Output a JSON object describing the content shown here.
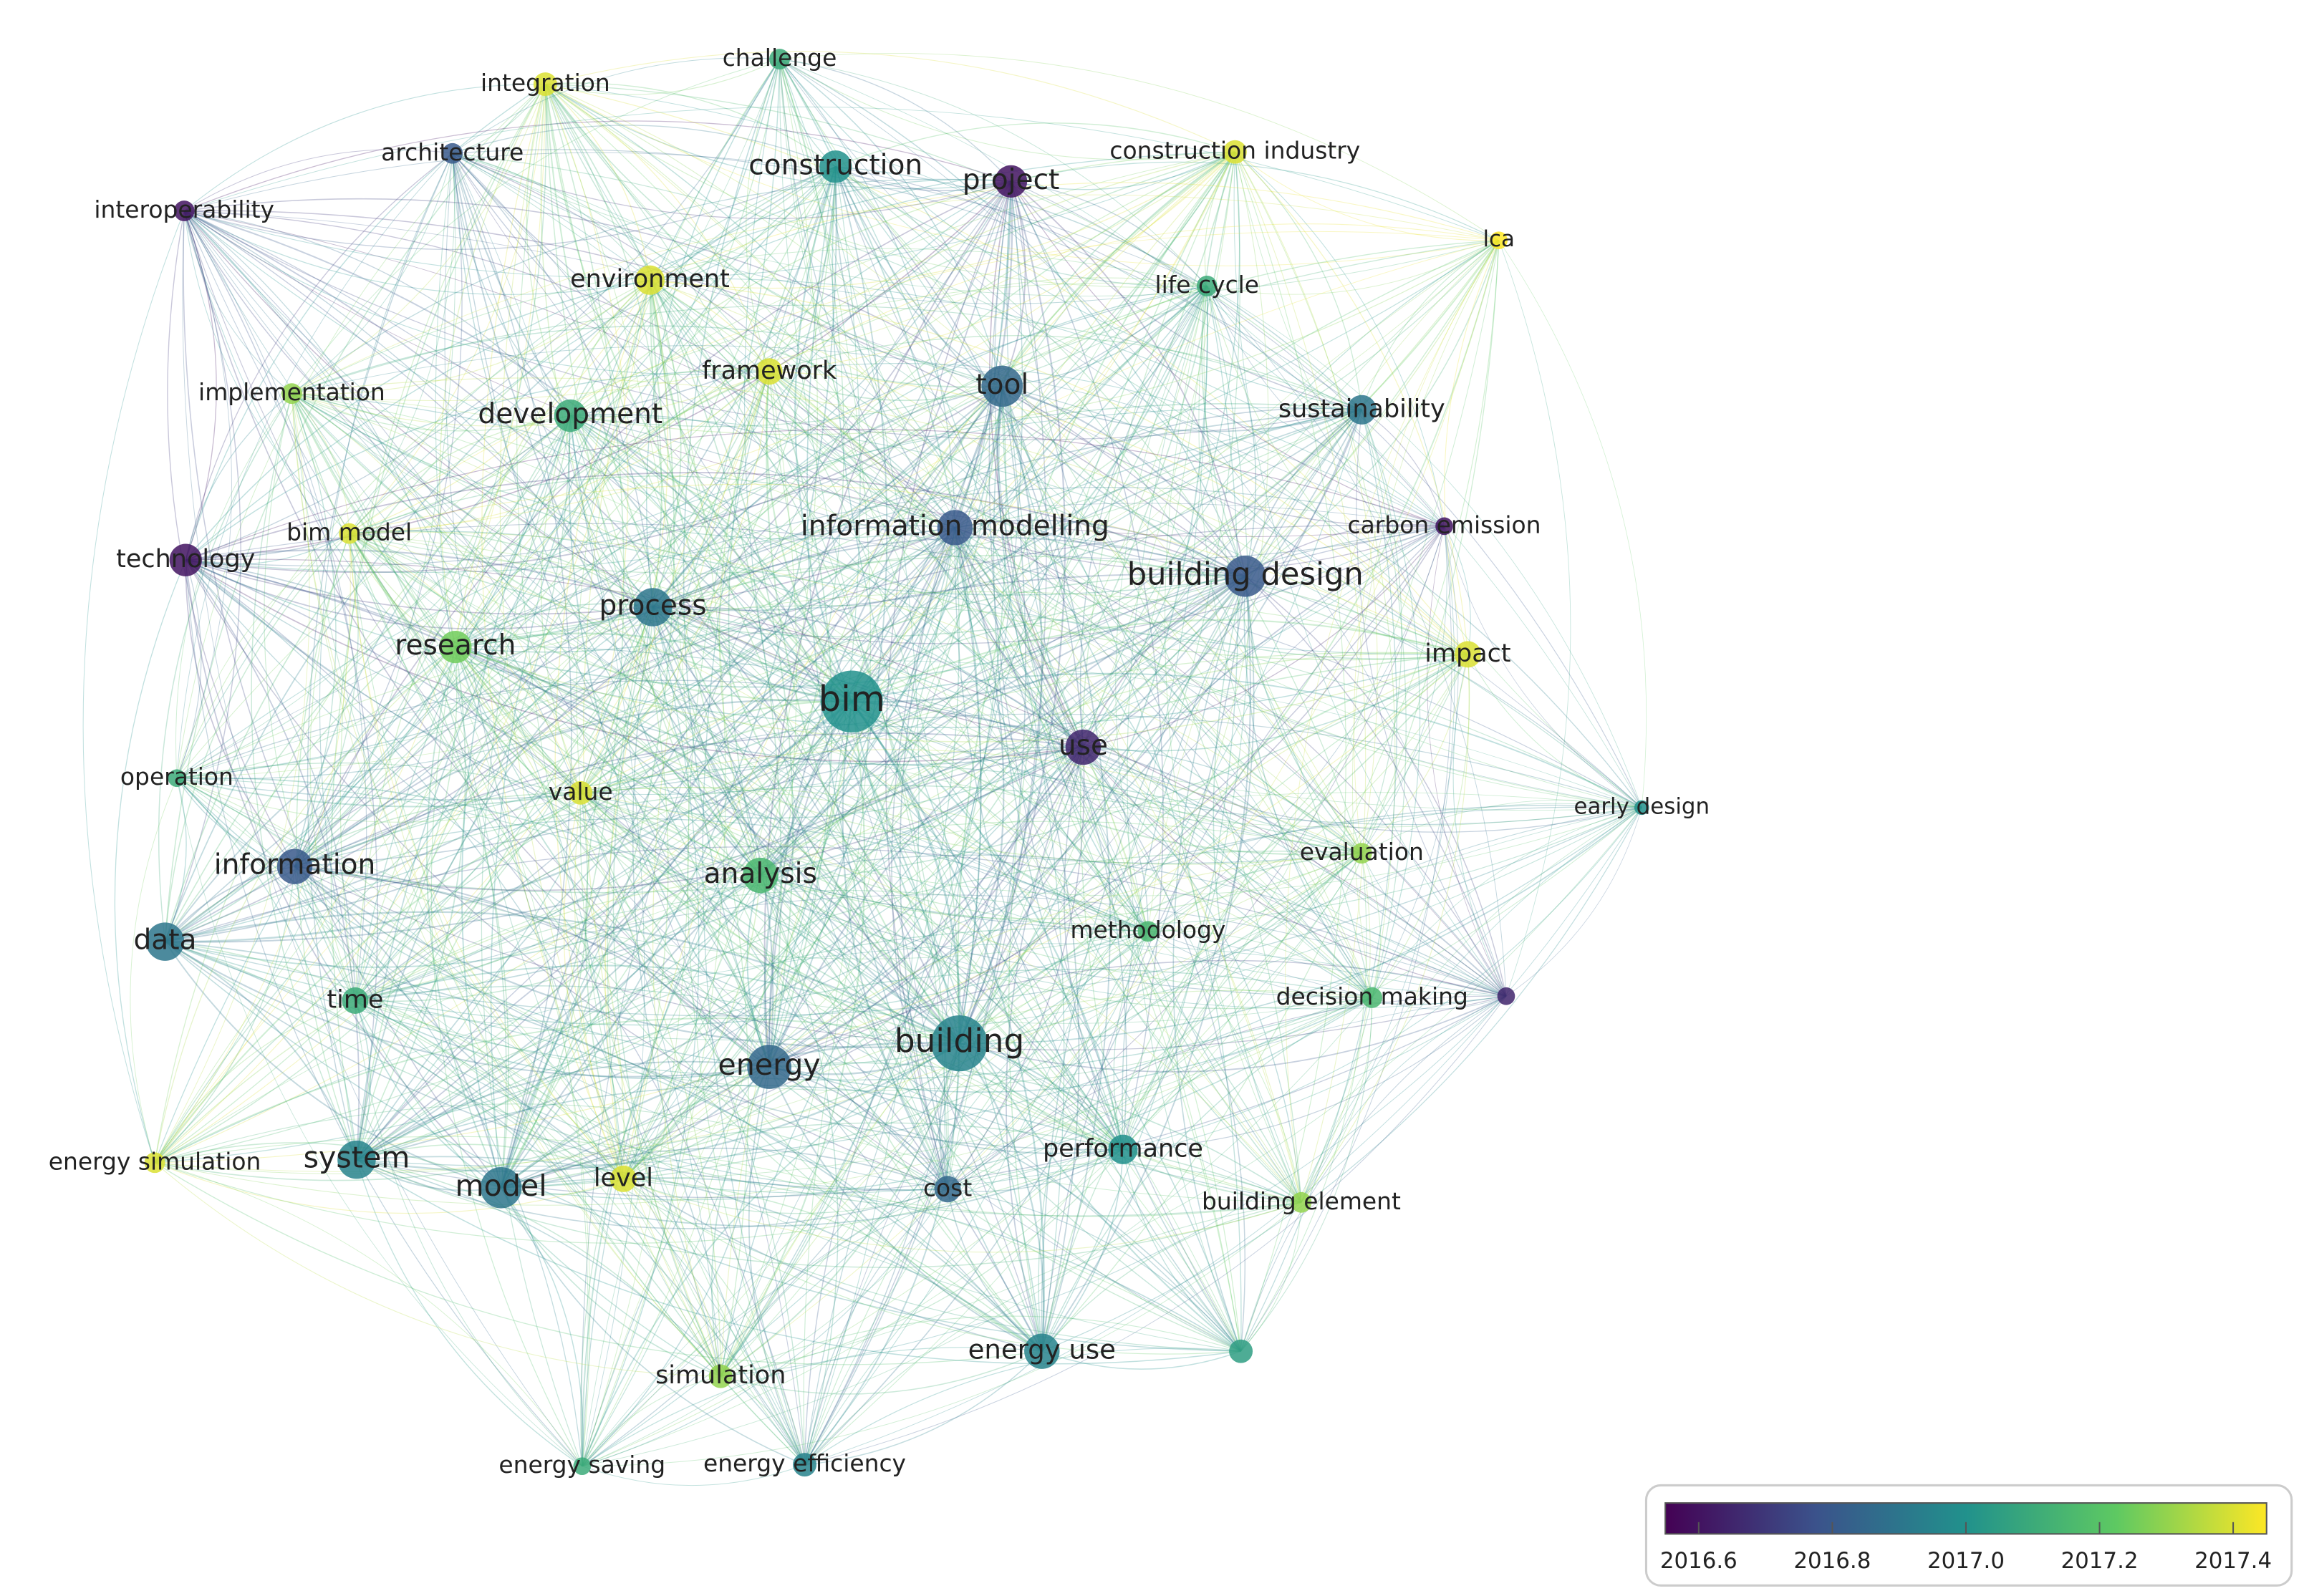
{
  "network": {
    "nodes": [
      {
        "label": "integration",
        "score": 2017.4
      },
      {
        "label": "challenge",
        "score": 2017.1
      },
      {
        "label": "architecture",
        "score": 2016.8
      },
      {
        "label": "interoperability",
        "score": 2016.6
      },
      {
        "label": "construction",
        "score": 2017.0
      },
      {
        "label": "project",
        "score": 2016.6
      },
      {
        "label": "construction industry",
        "score": 2017.4
      },
      {
        "label": "lca",
        "score": 2017.45
      },
      {
        "label": "environment",
        "score": 2017.4
      },
      {
        "label": "life cycle",
        "score": 2017.1
      },
      {
        "label": "framework",
        "score": 2017.4
      },
      {
        "label": "tool",
        "score": 2016.85
      },
      {
        "label": "implementation",
        "score": 2017.3
      },
      {
        "label": "development",
        "score": 2017.1
      },
      {
        "label": "sustainability",
        "score": 2016.9
      },
      {
        "label": "information modelling",
        "score": 2016.8
      },
      {
        "label": "carbon emission",
        "score": 2016.6
      },
      {
        "label": "technology",
        "score": 2016.6
      },
      {
        "label": "bim model",
        "score": 2017.4
      },
      {
        "label": "building design",
        "score": 2016.8
      },
      {
        "label": "process",
        "score": 2016.9
      },
      {
        "label": "research",
        "score": 2017.25
      },
      {
        "label": "impact",
        "score": 2017.4
      },
      {
        "label": "bim",
        "score": 2017.0
      },
      {
        "label": "use",
        "score": 2016.65
      },
      {
        "label": "operation",
        "score": 2017.1
      },
      {
        "label": "value",
        "score": 2017.4
      },
      {
        "label": "early design",
        "score": 2017.0
      },
      {
        "label": "information",
        "score": 2016.8
      },
      {
        "label": "analysis",
        "score": 2017.15
      },
      {
        "label": "evaluation",
        "score": 2017.3
      },
      {
        "label": "data",
        "score": 2016.9
      },
      {
        "label": "methodology",
        "score": 2017.15
      },
      {
        "label": "time",
        "score": 2017.1
      },
      {
        "label": "decision making",
        "score": 2017.15
      },
      {
        "label": null,
        "score": 2016.65
      },
      {
        "label": "energy",
        "score": 2016.85
      },
      {
        "label": "building",
        "score": 2016.95
      },
      {
        "label": "energy simulation",
        "score": 2017.4
      },
      {
        "label": "system",
        "score": 2016.95
      },
      {
        "label": "model",
        "score": 2016.9
      },
      {
        "label": "level",
        "score": 2017.4
      },
      {
        "label": "cost",
        "score": 2016.85
      },
      {
        "label": "performance",
        "score": 2017.0
      },
      {
        "label": "building element",
        "score": 2017.3
      },
      {
        "label": "energy use",
        "score": 2016.95
      },
      {
        "label": null,
        "score": 2017.05
      },
      {
        "label": "simulation",
        "score": 2017.3
      },
      {
        "label": "energy saving",
        "score": 2017.1
      },
      {
        "label": "energy efficiency",
        "score": 2016.95
      }
    ],
    "colorbar": {
      "lim": [
        2016.55,
        2017.45
      ],
      "ticks": [
        2016.6,
        2016.8,
        {
          "value": 2017,
          "label": "2017.0"
        },
        2017.2,
        2017.4
      ]
    }
  }
}
